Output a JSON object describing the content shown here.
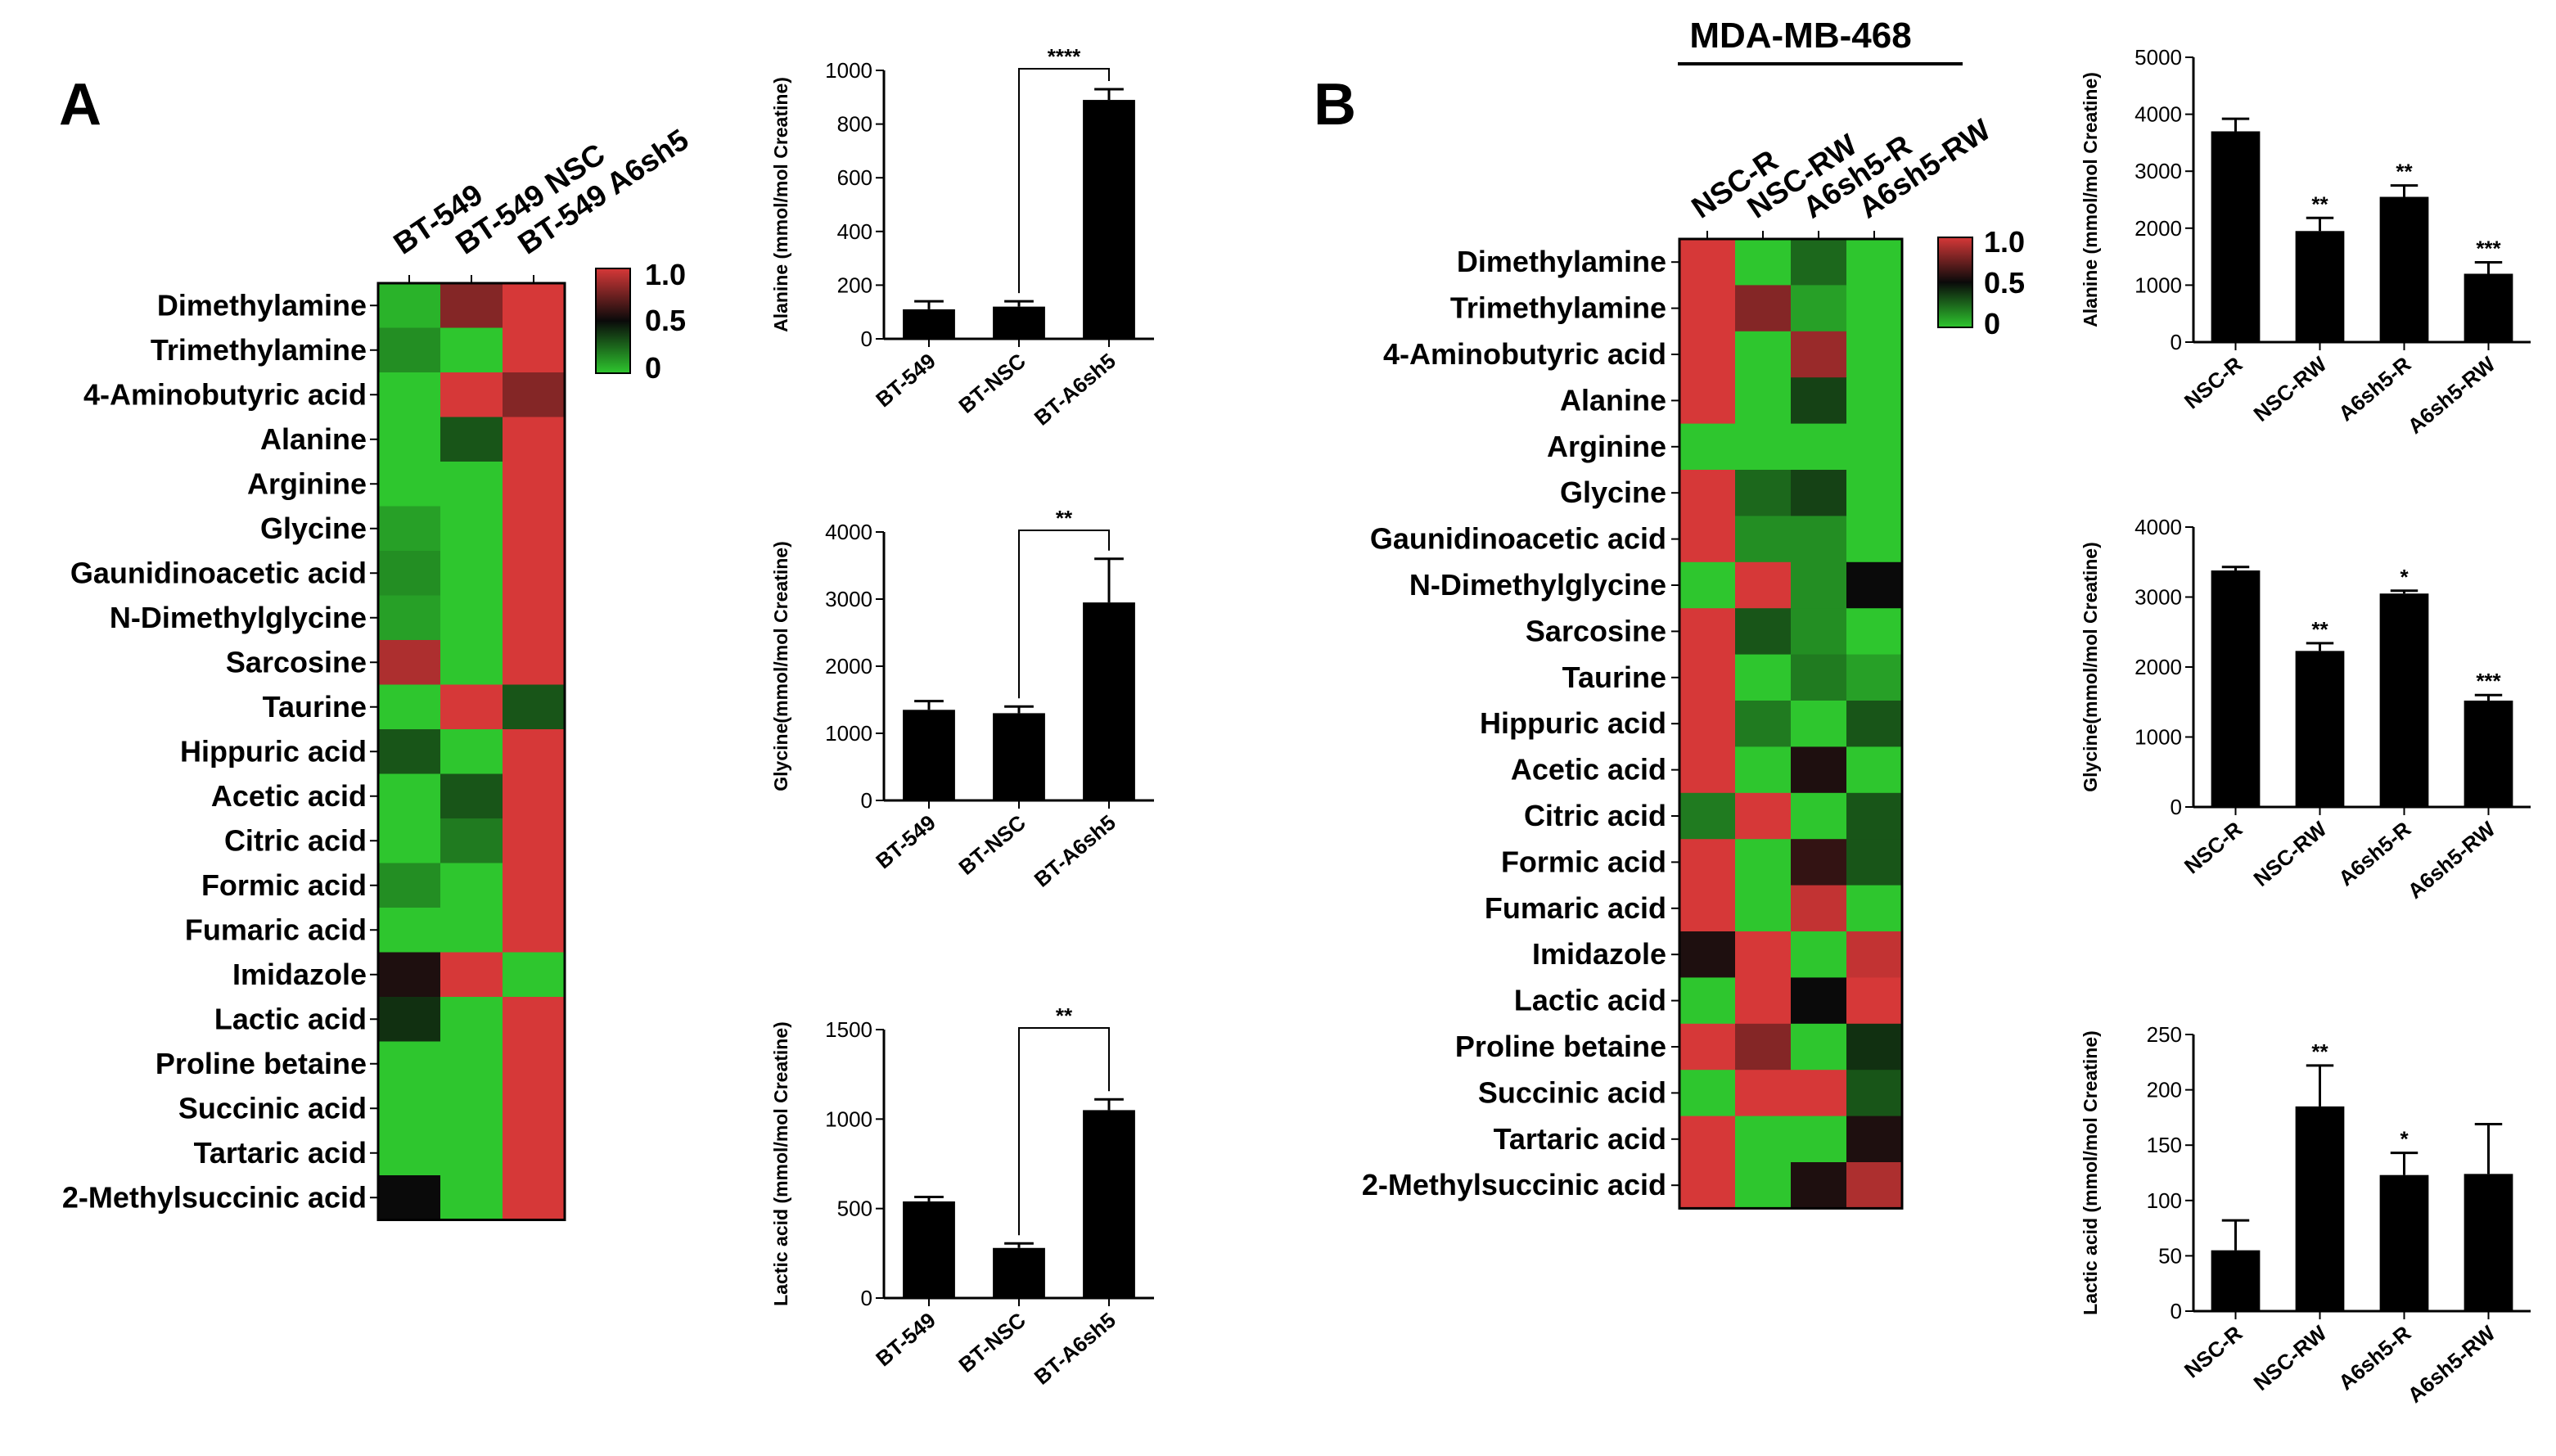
{
  "colors": {
    "low": "#2ec62e",
    "mid": "#0a0a0a",
    "high": "#d63838",
    "bar": "#000000"
  },
  "chart_data": [
    {
      "id": "heatmap-a",
      "type": "heatmap",
      "panel_label": "A",
      "columns": [
        "BT-549",
        "BT-549 NSC",
        "BT-549 A6sh5"
      ],
      "rows": [
        "Dimethylamine",
        "Trimethylamine",
        "4-Aminobutyric acid",
        "Alanine",
        "Arginine",
        "Glycine",
        "Gaunidinoacetic acid",
        "N-Dimethylglycine",
        "Sarcosine",
        "Taurine",
        "Hippuric acid",
        "Acetic acid",
        "Citric acid",
        "Formic acid",
        "Fumaric acid",
        "Imidazole",
        "Lactic acid",
        "Proline betaine",
        "Succinic acid",
        "Tartaric acid",
        "2-Methylsuccinic acid"
      ],
      "values": [
        [
          0.05,
          0.8,
          1.0
        ],
        [
          0.15,
          0.0,
          1.0
        ],
        [
          0.0,
          1.0,
          0.8
        ],
        [
          0.0,
          0.3,
          1.0
        ],
        [
          0.0,
          0.0,
          1.0
        ],
        [
          0.1,
          0.0,
          1.0
        ],
        [
          0.15,
          0.0,
          1.0
        ],
        [
          0.1,
          0.0,
          1.0
        ],
        [
          0.9,
          0.0,
          1.0
        ],
        [
          0.0,
          1.0,
          0.3
        ],
        [
          0.3,
          0.0,
          1.0
        ],
        [
          0.0,
          0.3,
          1.0
        ],
        [
          0.0,
          0.2,
          1.0
        ],
        [
          0.15,
          0.0,
          1.0
        ],
        [
          0.0,
          0.0,
          1.0
        ],
        [
          0.55,
          1.0,
          0.0
        ],
        [
          0.4,
          0.0,
          1.0
        ],
        [
          0.0,
          0.0,
          1.0
        ],
        [
          0.0,
          0.0,
          1.0
        ],
        [
          0.0,
          0.0,
          1.0
        ],
        [
          0.5,
          0.0,
          1.0
        ]
      ],
      "scale_labels": [
        "1.0",
        "0.5",
        "0"
      ]
    },
    {
      "id": "heatmap-b",
      "type": "heatmap",
      "panel_label": "B",
      "title": "MDA-MB-468",
      "columns": [
        "NSC-R",
        "NSC-RW",
        "A6sh5-R",
        "A6sh5-RW"
      ],
      "rows": [
        "Dimethylamine",
        "Trimethylamine",
        "4-Aminobutyric acid",
        "Alanine",
        "Arginine",
        "Glycine",
        "Gaunidinoacetic acid",
        "N-Dimethylglycine",
        "Sarcosine",
        "Taurine",
        "Hippuric acid",
        "Acetic acid",
        "Citric acid",
        "Formic acid",
        "Fumaric acid",
        "Imidazole",
        "Lactic acid",
        "Proline betaine",
        "Succinic acid",
        "Tartaric acid",
        "2-Methylsuccinic acid"
      ],
      "values": [
        [
          1.0,
          0.0,
          0.25,
          0.0
        ],
        [
          1.0,
          0.8,
          0.1,
          0.0
        ],
        [
          1.0,
          0.0,
          0.85,
          0.0
        ],
        [
          1.0,
          0.0,
          0.35,
          0.0
        ],
        [
          0.0,
          0.0,
          0.0,
          0.0
        ],
        [
          1.0,
          0.25,
          0.35,
          0.0
        ],
        [
          1.0,
          0.15,
          0.15,
          0.0
        ],
        [
          0.0,
          1.0,
          0.15,
          0.5
        ],
        [
          1.0,
          0.3,
          0.15,
          0.0
        ],
        [
          1.0,
          0.0,
          0.2,
          0.1
        ],
        [
          1.0,
          0.2,
          0.0,
          0.3
        ],
        [
          1.0,
          0.0,
          0.55,
          0.0
        ],
        [
          0.2,
          1.0,
          0.0,
          0.3
        ],
        [
          1.0,
          0.0,
          0.6,
          0.3
        ],
        [
          1.0,
          0.0,
          0.95,
          0.0
        ],
        [
          0.55,
          1.0,
          0.0,
          0.95
        ],
        [
          0.0,
          1.0,
          0.5,
          1.0
        ],
        [
          1.0,
          0.8,
          0.0,
          0.4
        ],
        [
          0.0,
          1.0,
          1.0,
          0.3
        ],
        [
          1.0,
          0.0,
          0.0,
          0.55
        ],
        [
          1.0,
          0.0,
          0.55,
          0.9
        ]
      ],
      "scale_labels": [
        "1.0",
        "0.5",
        "0"
      ]
    },
    {
      "id": "bar-a-alanine",
      "type": "bar",
      "categories": [
        "BT-549",
        "BT-NSC",
        "BT-A6sh5"
      ],
      "values": [
        110,
        120,
        890
      ],
      "errors": [
        30,
        20,
        40
      ],
      "ylabel": "Alanine (mmol/mol Creatine)",
      "ylim": [
        0,
        1000
      ],
      "yticks": [
        0,
        200,
        400,
        600,
        800,
        1000
      ],
      "comparisons": [
        {
          "from": 1,
          "to": 2,
          "label": "****"
        }
      ],
      "significance": [
        "",
        "",
        ""
      ]
    },
    {
      "id": "bar-a-glycine",
      "type": "bar",
      "categories": [
        "BT-549",
        "BT-NSC",
        "BT-A6sh5"
      ],
      "values": [
        1350,
        1300,
        2950
      ],
      "errors": [
        130,
        100,
        650
      ],
      "ylabel": "Glycine(mmol/mol Creatine)",
      "ylim": [
        0,
        4000
      ],
      "yticks": [
        0,
        1000,
        2000,
        3000,
        4000
      ],
      "comparisons": [
        {
          "from": 1,
          "to": 2,
          "label": "**"
        }
      ],
      "significance": [
        "",
        "",
        ""
      ]
    },
    {
      "id": "bar-a-lactic",
      "type": "bar",
      "categories": [
        "BT-549",
        "BT-NSC",
        "BT-A6sh5"
      ],
      "values": [
        540,
        280,
        1050
      ],
      "errors": [
        25,
        25,
        60
      ],
      "ylabel": "Lactic acid (mmol/mol Creatine)",
      "ylim": [
        0,
        1500
      ],
      "yticks": [
        0,
        500,
        1000,
        1500
      ],
      "comparisons": [
        {
          "from": 1,
          "to": 2,
          "label": "**"
        }
      ],
      "significance": [
        "",
        "",
        ""
      ]
    },
    {
      "id": "bar-b-alanine",
      "type": "bar",
      "categories": [
        "NSC-R",
        "NSC-RW",
        "A6sh5-R",
        "A6sh5-RW"
      ],
      "values": [
        3700,
        1950,
        2550,
        1200
      ],
      "errors": [
        220,
        230,
        200,
        200
      ],
      "ylabel": "Alanine (mmol/mol Creatine)",
      "ylim": [
        0,
        5000
      ],
      "yticks": [
        0,
        1000,
        2000,
        3000,
        4000,
        5000
      ],
      "comparisons": [],
      "significance": [
        "",
        "**",
        "**",
        "***"
      ]
    },
    {
      "id": "bar-b-glycine",
      "type": "bar",
      "categories": [
        "NSC-R",
        "NSC-RW",
        "A6sh5-R",
        "A6sh5-RW"
      ],
      "values": [
        3380,
        2230,
        3050,
        1520
      ],
      "errors": [
        50,
        110,
        40,
        80
      ],
      "ylabel": "Glycine(mmol/mol Creatine)",
      "ylim": [
        0,
        4000
      ],
      "yticks": [
        0,
        1000,
        2000,
        3000,
        4000
      ],
      "comparisons": [],
      "significance": [
        "",
        "**",
        "*",
        "***"
      ]
    },
    {
      "id": "bar-b-lactic",
      "type": "bar",
      "categories": [
        "NSC-R",
        "NSC-RW",
        "A6sh5-R",
        "A6sh5-RW"
      ],
      "values": [
        55,
        185,
        123,
        124
      ],
      "errors": [
        27,
        37,
        20,
        45
      ],
      "ylabel": "Lactic acid (mmol/mol Creatine)",
      "ylim": [
        0,
        250
      ],
      "yticks": [
        0,
        50,
        100,
        150,
        200,
        250
      ],
      "comparisons": [],
      "significance": [
        "",
        "**",
        "*",
        ""
      ]
    }
  ]
}
